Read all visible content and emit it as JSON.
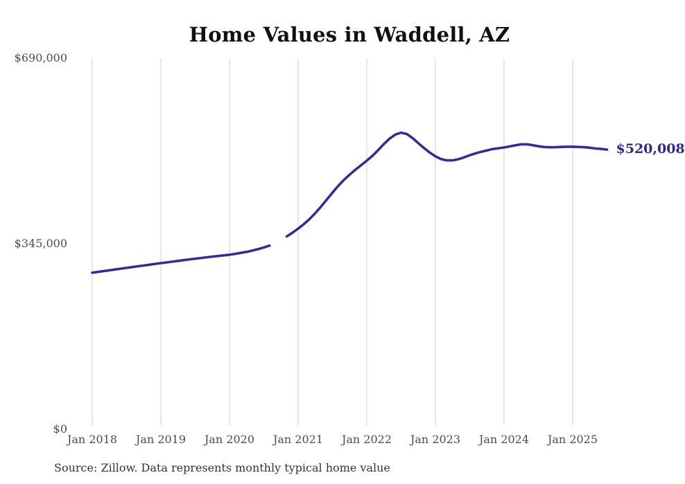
{
  "page": {
    "title": "Home Values in Waddell, AZ",
    "source_note": "Source: Zillow. Data represents monthly typical home value"
  },
  "chart_data": {
    "type": "line",
    "title": "Home Values in Waddell, AZ",
    "xlabel": "",
    "ylabel": "",
    "ylim": [
      0,
      690000
    ],
    "grid": "vertical-only",
    "grid_color": "#cccccc",
    "line_color": "#312d98",
    "background_color": "#ffffff",
    "legend": "none",
    "x_tick_labels": [
      "Jan 2018",
      "Jan 2019",
      "Jan 2020",
      "Jan 2021",
      "Jan 2022",
      "Jan 2023",
      "Jan 2024",
      "Jan 2025"
    ],
    "y_tick_labels": [
      "$690,000",
      "$345,000",
      "$0"
    ],
    "y_tick_values": [
      690000,
      345000,
      0
    ],
    "end_label": "$520,008",
    "final_value": 520008,
    "data_frequency": "monthly",
    "gap_months": [
      "2020-09",
      "2020-10"
    ],
    "series": [
      {
        "name": "segment-1",
        "start_month": "2018-01",
        "values": [
          291000,
          292600,
          294100,
          295600,
          297100,
          298600,
          300100,
          301600,
          303100,
          304500,
          306000,
          307500,
          309000,
          310300,
          311700,
          313100,
          314500,
          315900,
          317200,
          318500,
          319800,
          321000,
          322200,
          323400,
          324500,
          326200,
          328000,
          330000,
          332300,
          335000,
          338000,
          341500
        ]
      },
      {
        "name": "segment-2",
        "start_month": "2020-11",
        "values": [
          358500,
          365500,
          373000,
          381500,
          391000,
          402000,
          414000,
          427000,
          440000,
          452500,
          463500,
          473500,
          482500,
          491000,
          499500,
          508500,
          519000,
          530500,
          540500,
          548000,
          551500,
          549000,
          541500,
          532000,
          523000,
          514500,
          507500,
          502500,
          500000,
          500000,
          502000,
          505500,
          509500,
          513000,
          516000,
          518500,
          521000,
          522500,
          524000,
          526000,
          528000,
          529800,
          529800,
          528200,
          526200,
          524800,
          524300,
          524500,
          525000,
          525300,
          525300,
          525000,
          524400,
          523500,
          522000,
          521200,
          520008
        ]
      }
    ]
  }
}
